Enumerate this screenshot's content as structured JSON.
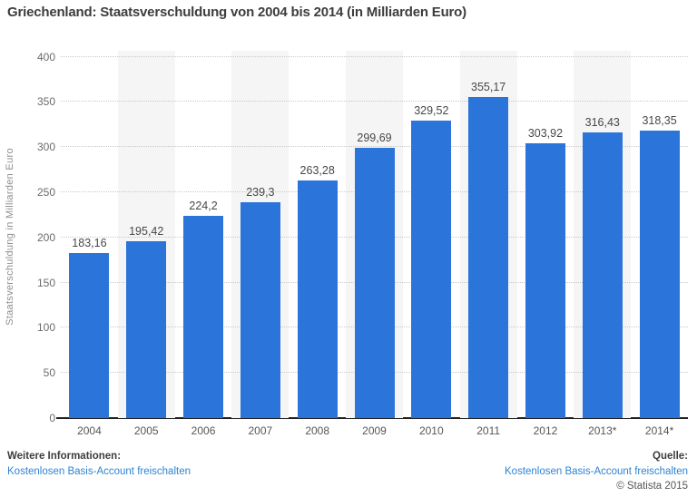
{
  "title": "Griechenland: Staatsverschuldung von 2004 bis 2014 (in Milliarden Euro)",
  "chart_data": {
    "type": "bar",
    "title": "Griechenland: Staatsverschuldung von 2004 bis 2014 (in Milliarden Euro)",
    "categories": [
      "2004",
      "2005",
      "2006",
      "2007",
      "2008",
      "2009",
      "2010",
      "2011",
      "2012",
      "2013*",
      "2014*"
    ],
    "values": [
      183.16,
      195.42,
      224.2,
      239.3,
      263.28,
      299.69,
      329.52,
      355.17,
      303.92,
      316.43,
      318.35
    ],
    "value_labels": [
      "183,16",
      "195,42",
      "224,2",
      "239,3",
      "263,28",
      "299,69",
      "329,52",
      "355,17",
      "303,92",
      "316,43",
      "318,35"
    ],
    "xlabel": "",
    "ylabel": "Staatsverschuldung in Milliarden Euro",
    "ylim": [
      0,
      400
    ],
    "yticks": [
      0,
      50,
      100,
      150,
      200,
      250,
      300,
      350,
      400
    ],
    "grid": "horizontal-dotted",
    "legend_position": "none",
    "bar_color": "#2b74d9",
    "alt_band_color": "#f5f5f5",
    "grid_color": "#c9c9c9",
    "axis_line_color": "#1f1f1f"
  },
  "footer": {
    "left_heading": "Weitere Informationen:",
    "left_link": "Kostenlosen Basis-Account freischalten",
    "right_heading": "Quelle:",
    "right_link": "Kostenlosen Basis-Account freischalten",
    "copyright": "© Statista 2015"
  },
  "colors": {
    "link": "#2e83d4",
    "title_text": "#3d3d3d",
    "bar": "#2b74d9"
  }
}
